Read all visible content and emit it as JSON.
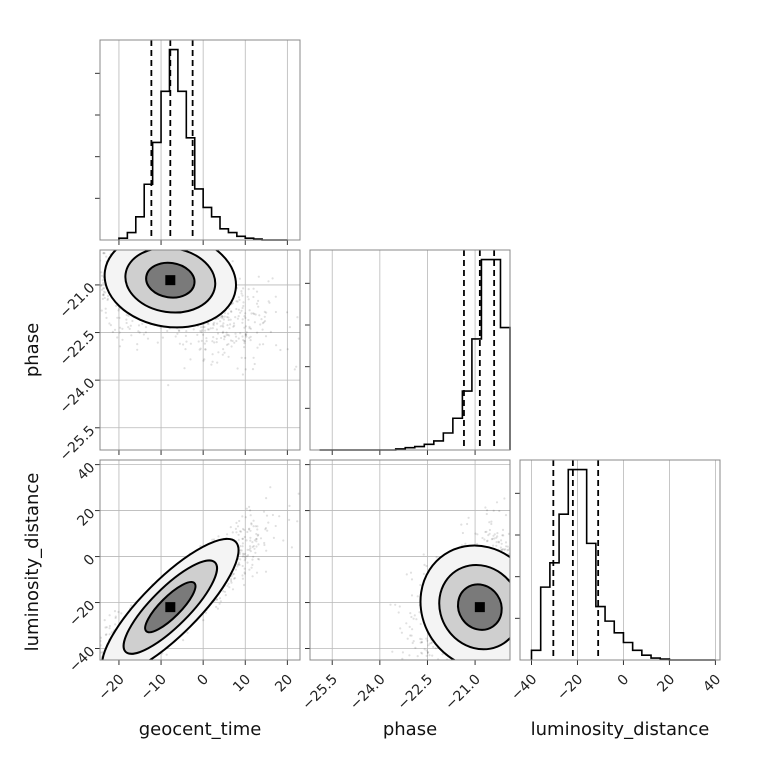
{
  "chart_data": {
    "type": "corner",
    "parameters": [
      "geocent_time",
      "phase",
      "luminosity_distance"
    ],
    "ranges": {
      "geocent_time": [
        -24.5,
        23
      ],
      "phase": [
        -26.2,
        -19.9
      ],
      "luminosity_distance": [
        -45,
        42
      ]
    },
    "ticks": {
      "geocent_time": [
        -20,
        -10,
        0,
        10,
        20
      ],
      "phase": [
        -25.5,
        -24.0,
        -22.5,
        -21.0
      ],
      "luminosity_distance": [
        -40,
        -20,
        0,
        20,
        40
      ]
    },
    "tick_labels": {
      "geocent_time": [
        "−20",
        "−10",
        "0",
        "10",
        "20"
      ],
      "phase": [
        "−25.5",
        "−24.0",
        "−22.5",
        "−21.0"
      ],
      "luminosity_distance": [
        "−40",
        "−20",
        "0",
        "20",
        "40"
      ]
    },
    "quantiles": {
      "geocent_time": [
        -12.3,
        -7.8,
        -2.5
      ],
      "phase": [
        -21.35,
        -20.85,
        -20.4
      ],
      "luminosity_distance": [
        -30.5,
        -22,
        -11
      ]
    },
    "histograms": {
      "geocent_time": {
        "edges": [
          -20,
          -18,
          -16,
          -14,
          -12,
          -10,
          -8,
          -6,
          -4,
          -2,
          0,
          2,
          4,
          6,
          8,
          10,
          12,
          14,
          16,
          18,
          20
        ],
        "counts": [
          2,
          8,
          25,
          60,
          105,
          160,
          205,
          160,
          110,
          55,
          35,
          25,
          12,
          8,
          4,
          2,
          1,
          0,
          0,
          0
        ]
      },
      "phase": {
        "edges": [
          -25.9,
          -25.6,
          -25.3,
          -25.0,
          -24.7,
          -24.4,
          -24.1,
          -23.8,
          -23.5,
          -23.2,
          -22.9,
          -22.6,
          -22.3,
          -22.0,
          -21.7,
          -21.4,
          -21.1,
          -20.8,
          -20.5,
          -20.2,
          -19.9
        ],
        "counts": [
          0,
          0,
          0,
          0,
          0,
          0,
          0,
          0,
          1,
          2,
          3,
          5,
          8,
          15,
          28,
          52,
          98,
          168,
          168,
          108
        ]
      },
      "luminosity_distance": {
        "edges": [
          -40,
          -36,
          -32,
          -28,
          -24,
          -20,
          -16,
          -12,
          -8,
          -4,
          0,
          4,
          8,
          12,
          16,
          20,
          24,
          28,
          32,
          36,
          40
        ],
        "counts": [
          10,
          75,
          100,
          150,
          196,
          196,
          120,
          55,
          40,
          28,
          18,
          10,
          5,
          2,
          1,
          0,
          0,
          0,
          0,
          0
        ]
      }
    },
    "grid": true,
    "contour_levels": 3,
    "xlabels": [
      "geocent_time",
      "phase",
      "luminosity_distance"
    ],
    "ylabels": [
      "",
      "phase",
      "luminosity_distance"
    ]
  }
}
